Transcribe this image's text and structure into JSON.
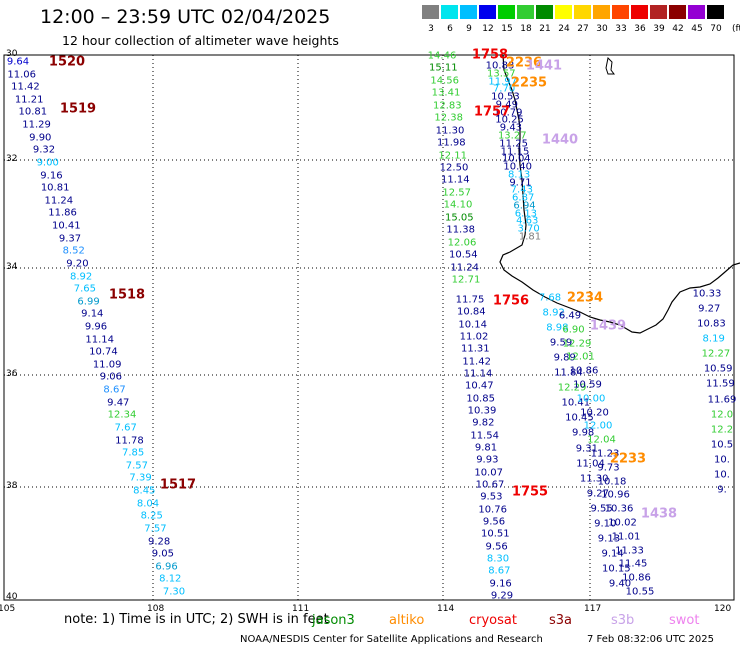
{
  "header": {
    "title": "12:00 – 23:59 UTC 02/04/2025",
    "subtitle": "12 hour collection of altimeter wave heights"
  },
  "legend": {
    "unit": "(ft)",
    "bins": [
      {
        "label": "3",
        "color": "#808080"
      },
      {
        "label": "6",
        "color": "#00e5ee"
      },
      {
        "label": "9",
        "color": "#00bfff"
      },
      {
        "label": "12",
        "color": "#0000ee"
      },
      {
        "label": "15",
        "color": "#00cd00"
      },
      {
        "label": "18",
        "color": "#32cd32"
      },
      {
        "label": "21",
        "color": "#008b00"
      },
      {
        "label": "24",
        "color": "#ffff00"
      },
      {
        "label": "27",
        "color": "#ffd700"
      },
      {
        "label": "30",
        "color": "#ffa500"
      },
      {
        "label": "33",
        "color": "#ff4500"
      },
      {
        "label": "36",
        "color": "#ee0000"
      },
      {
        "label": "39",
        "color": "#b22222"
      },
      {
        "label": "42",
        "color": "#8b0000"
      },
      {
        "label": "45",
        "color": "#9400d3"
      },
      {
        "label": "70",
        "color": "#000000"
      }
    ]
  },
  "axes": {
    "lat_labels": [
      "30",
      "32",
      "34",
      "36",
      "38",
      "40"
    ],
    "lon_labels": [
      "105",
      "108",
      "111",
      "114",
      "117",
      "120"
    ]
  },
  "tracks": {
    "west": {
      "items": [
        [
          "9.64",
          "#0000cd"
        ],
        [
          "11.06",
          "#00008b"
        ],
        [
          "11.42",
          "#00008b"
        ],
        [
          "11.21",
          "#00008b"
        ],
        [
          "10.81",
          "#00008b"
        ],
        [
          "11.29",
          "#00008b"
        ],
        [
          "9.90",
          "#00008b"
        ],
        [
          "9.32",
          "#00008b"
        ],
        [
          "9.00",
          "#00bfff"
        ],
        [
          "9.16",
          "#00008b"
        ],
        [
          "10.81",
          "#00008b"
        ],
        [
          "11.24",
          "#00008b"
        ],
        [
          "11.86",
          "#00008b"
        ],
        [
          "10.41",
          "#00008b"
        ],
        [
          "9.37",
          "#00008b"
        ],
        [
          "8.52",
          "#1e90ff"
        ],
        [
          "9.20",
          "#00008b"
        ],
        [
          "8.92",
          "#00bfff"
        ],
        [
          "7.65",
          "#00bfff"
        ],
        [
          "6.99",
          "#0099cc"
        ],
        [
          "9.14",
          "#00008b"
        ],
        [
          "9.96",
          "#00008b"
        ],
        [
          "11.14",
          "#00008b"
        ],
        [
          "10.74",
          "#00008b"
        ],
        [
          "11.09",
          "#00008b"
        ],
        [
          "9.06",
          "#00008b"
        ],
        [
          "8.67",
          "#1e90ff"
        ],
        [
          "9.47",
          "#00008b"
        ],
        [
          "12.34",
          "#32cd32"
        ],
        [
          "7.67",
          "#00bfff"
        ],
        [
          "11.78",
          "#00008b"
        ],
        [
          "7.85",
          "#00bfff"
        ],
        [
          "7.57",
          "#00bfff"
        ],
        [
          "7.39",
          "#00bfff"
        ],
        [
          "8.45",
          "#00bfff"
        ],
        [
          "8.04",
          "#00bfff"
        ],
        [
          "8.25",
          "#00bfff"
        ],
        [
          "7.57",
          "#00bfff"
        ],
        [
          "9.28",
          "#00008b"
        ],
        [
          "9.05",
          "#00008b"
        ],
        [
          "6.96",
          "#0099cc"
        ],
        [
          "8.12",
          "#00bfff"
        ],
        [
          "7.30",
          "#00bfff"
        ]
      ]
    },
    "coast_green": {
      "items": [
        [
          "14.46",
          "#32cd32"
        ],
        [
          "15.11",
          "#008b00"
        ],
        [
          "14.56",
          "#32cd32"
        ],
        [
          "13.41",
          "#32cd32"
        ],
        [
          "12.83",
          "#32cd32"
        ],
        [
          "12.38",
          "#32cd32"
        ],
        [
          "11.30",
          "#00008b"
        ],
        [
          "11.98",
          "#00008b"
        ],
        [
          "12.11",
          "#32cd32"
        ],
        [
          "12.50",
          "#00008b"
        ],
        [
          "11.14",
          "#00008b"
        ],
        [
          "12.57",
          "#32cd32"
        ],
        [
          "14.10",
          "#32cd32"
        ],
        [
          "15.05",
          "#008b00"
        ],
        [
          "11.38",
          "#00008b"
        ],
        [
          "12.06",
          "#32cd32"
        ],
        [
          "10.54",
          "#00008b"
        ],
        [
          "11.24",
          "#00008b"
        ],
        [
          "12.71",
          "#32cd32"
        ]
      ]
    },
    "coast_inner": {
      "items": [
        [
          "10.83",
          "#00008b"
        ],
        [
          "13.57",
          "#32cd32"
        ],
        [
          "11.97",
          "#00bfff"
        ],
        [
          "7.70",
          "#00bfff"
        ],
        [
          "10.53",
          "#00008b"
        ],
        [
          "9.49",
          "#00008b"
        ],
        [
          "10.79",
          "#00008b"
        ],
        [
          "10.25",
          "#00008b"
        ],
        [
          "9.43",
          "#00008b"
        ],
        [
          "13.27",
          "#32cd32"
        ],
        [
          "11.25",
          "#00008b"
        ],
        [
          "11.15",
          "#00008b"
        ],
        [
          "10.04",
          "#00008b"
        ],
        [
          "10.40",
          "#00008b"
        ],
        [
          "8.13",
          "#00bfff"
        ],
        [
          "9.71",
          "#00008b"
        ],
        [
          "7.43",
          "#00bfff"
        ],
        [
          "6.87",
          "#00bfff"
        ],
        [
          "6.94",
          "#0099cc"
        ],
        [
          "6.13",
          "#00bfff"
        ],
        [
          "4.63",
          "#00bfff"
        ],
        [
          "3.70",
          "#00bfff"
        ],
        [
          "1.81",
          "#808080"
        ]
      ]
    },
    "south_a": {
      "items": [
        [
          "11.75",
          "#00008b"
        ],
        [
          "10.84",
          "#00008b"
        ],
        [
          "10.14",
          "#00008b"
        ],
        [
          "11.02",
          "#00008b"
        ],
        [
          "11.31",
          "#00008b"
        ],
        [
          "11.42",
          "#00008b"
        ],
        [
          "11.14",
          "#00008b"
        ],
        [
          "10.47",
          "#00008b"
        ],
        [
          "10.85",
          "#00008b"
        ],
        [
          "10.39",
          "#00008b"
        ],
        [
          "9.82",
          "#00008b"
        ],
        [
          "11.54",
          "#00008b"
        ],
        [
          "9.81",
          "#00008b"
        ],
        [
          "9.93",
          "#00008b"
        ],
        [
          "10.07",
          "#00008b"
        ],
        [
          "10.67",
          "#00008b"
        ],
        [
          "9.53",
          "#00008b"
        ],
        [
          "10.76",
          "#00008b"
        ],
        [
          "9.56",
          "#00008b"
        ],
        [
          "10.51",
          "#00008b"
        ],
        [
          "9.56",
          "#00008b"
        ],
        [
          "8.30",
          "#00bfff"
        ],
        [
          "8.67",
          "#00bfff"
        ],
        [
          "9.16",
          "#00008b"
        ],
        [
          "9.29",
          "#00008b"
        ]
      ]
    },
    "south_b": {
      "items": [
        [
          "7.68",
          "#00bfff"
        ],
        [
          "8.92",
          "#00bfff"
        ],
        [
          "8.98",
          "#00bfff"
        ],
        [
          "9.59",
          "#00008b"
        ],
        [
          "9.89",
          "#00008b"
        ],
        [
          "11.84",
          "#00008b"
        ],
        [
          "12.29",
          "#32cd32"
        ],
        [
          "10.41",
          "#00008b"
        ],
        [
          "10.45",
          "#00008b"
        ],
        [
          "9.98",
          "#00008b"
        ],
        [
          "9.31",
          "#00008b"
        ],
        [
          "11.04",
          "#00008b"
        ],
        [
          "11.30",
          "#00008b"
        ],
        [
          "9.27",
          "#00008b"
        ],
        [
          "9.55",
          "#00008b"
        ],
        [
          "9.10",
          "#00008b"
        ],
        [
          "9.13",
          "#00008b"
        ],
        [
          "9.14",
          "#00008b"
        ],
        [
          "10.15",
          "#00008b"
        ],
        [
          "9.40",
          "#00008b"
        ]
      ]
    },
    "south_c": {
      "items": [
        [
          "6.49",
          "#00008b"
        ],
        [
          "6.90",
          "#32cd32"
        ],
        [
          "12.29",
          "#32cd32"
        ],
        [
          "12.01",
          "#32cd32"
        ],
        [
          "10.86",
          "#00008b"
        ],
        [
          "10.59",
          "#00008b"
        ],
        [
          "10.00",
          "#00bfff"
        ],
        [
          "10.20",
          "#00008b"
        ],
        [
          "12.00",
          "#00bfff"
        ],
        [
          "12.04",
          "#32cd32"
        ],
        [
          "11.23",
          "#00008b"
        ],
        [
          "9.73",
          "#00008b"
        ],
        [
          "10.18",
          "#00008b"
        ],
        [
          "10.96",
          "#00008b"
        ],
        [
          "10.36",
          "#00008b"
        ],
        [
          "10.02",
          "#00008b"
        ],
        [
          "11.01",
          "#00008b"
        ],
        [
          "11.33",
          "#00008b"
        ],
        [
          "11.45",
          "#00008b"
        ],
        [
          "10.86",
          "#00008b"
        ],
        [
          "10.55",
          "#00008b"
        ]
      ]
    },
    "east": {
      "items": [
        [
          "10.33",
          "#00008b"
        ],
        [
          "9.27",
          "#00008b"
        ],
        [
          "10.83",
          "#00008b"
        ],
        [
          "8.19",
          "#00bfff"
        ],
        [
          "12.27",
          "#32cd32"
        ],
        [
          "10.59",
          "#00008b"
        ],
        [
          "11.59",
          "#00008b"
        ],
        [
          "11.69",
          "#00008b"
        ],
        [
          "12.0",
          "#32cd32"
        ],
        [
          "12.2",
          "#32cd32"
        ],
        [
          "10.5",
          "#00008b"
        ],
        [
          "10.",
          "#00008b"
        ],
        [
          "10.",
          "#00008b"
        ],
        [
          "9.",
          "#00008b"
        ]
      ]
    }
  },
  "time_labels": [
    {
      "text": "1520",
      "color": "#8b0000"
    },
    {
      "text": "1519",
      "color": "#8b0000"
    },
    {
      "text": "1518",
      "color": "#8b0000"
    },
    {
      "text": "1517",
      "color": "#8b0000"
    },
    {
      "text": "1758",
      "color": "#ee0000"
    },
    {
      "text": "1757",
      "color": "#ee0000"
    },
    {
      "text": "1756",
      "color": "#ee0000"
    },
    {
      "text": "1755",
      "color": "#ee0000"
    },
    {
      "text": "2236",
      "color": "#ff8c00"
    },
    {
      "text": "2235",
      "color": "#ff8c00"
    },
    {
      "text": "2234",
      "color": "#ff8c00"
    },
    {
      "text": "2233",
      "color": "#ff8c00"
    },
    {
      "text": "1441",
      "color": "#c8a2e8"
    },
    {
      "text": "1440",
      "color": "#c8a2e8"
    },
    {
      "text": "1439",
      "color": "#c8a2e8"
    },
    {
      "text": "1438",
      "color": "#c8a2e8"
    }
  ],
  "footer": {
    "note": "note:  1) Time is in UTC;  2) SWH is in feet",
    "missions": [
      {
        "text": "jason3",
        "color": "#008b00"
      },
      {
        "text": "altiko",
        "color": "#ff8c00"
      },
      {
        "text": "cryosat",
        "color": "#ee0000"
      },
      {
        "text": "s3a",
        "color": "#8b0000"
      },
      {
        "text": "s3b",
        "color": "#c8a2e8"
      },
      {
        "text": "swot",
        "color": "#ee82ee"
      }
    ],
    "credit": "NOAA/NESDIS Center for Satellite Applications and Research",
    "timestamp": "7 Feb 08:32:06 UTC 2025"
  }
}
